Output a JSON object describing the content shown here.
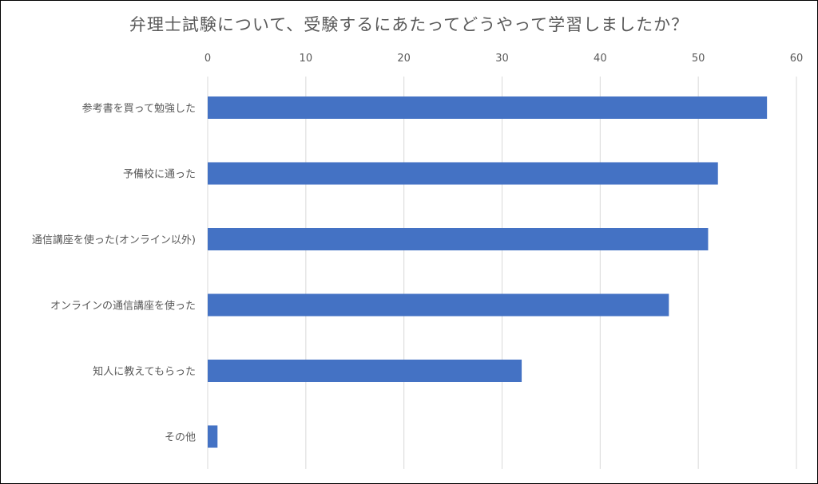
{
  "chart_data": {
    "type": "bar",
    "orientation": "horizontal",
    "title": "弁理士試験について、受験するにあたってどうやって学習しましたか？",
    "xlabel": "",
    "ylabel": "",
    "xlim": [
      0,
      60
    ],
    "x_ticks": [
      "0",
      "10",
      "20",
      "30",
      "40",
      "50",
      "60"
    ],
    "x_tick_values": [
      0,
      10,
      20,
      30,
      40,
      50,
      60
    ],
    "grid": true,
    "legend": false,
    "categories": [
      "参考書を買って勉強した",
      "予備校に通った",
      "通信講座を使った(オンライン以外)",
      "オンラインの通信講座を使った",
      "知人に教えてもらった",
      "その他"
    ],
    "values": [
      57,
      52,
      51,
      47,
      32,
      1
    ],
    "bar_color": "#4472C4",
    "grid_color": "#D9D9D9"
  }
}
